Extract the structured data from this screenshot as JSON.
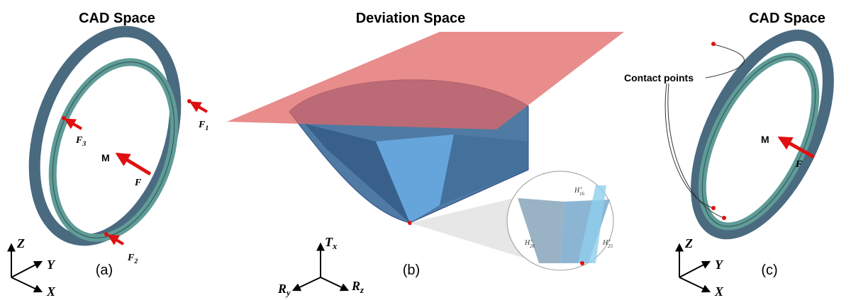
{
  "panels": [
    {
      "title": "CAD Space",
      "caption": "(a)",
      "moment": "M",
      "forces": [
        {
          "symbol": "F",
          "sub": "1"
        },
        {
          "symbol": "F",
          "sub": "3"
        },
        {
          "symbol": "F"
        },
        {
          "symbol": "F",
          "sub": "2"
        }
      ],
      "axes": [
        {
          "symbol": "Z"
        },
        {
          "symbol": "Y"
        },
        {
          "symbol": "X"
        }
      ]
    },
    {
      "title": "Deviation Space",
      "caption": "(b)",
      "axes": [
        {
          "symbol": "T",
          "sub": "x"
        },
        {
          "symbol": "R",
          "sub": "y"
        },
        {
          "symbol": "R",
          "sub": "z"
        }
      ],
      "inset": [
        {
          "symbol": "H",
          "sup": "+",
          "sub": "16"
        },
        {
          "symbol": "H",
          "sup": "+",
          "sub": "26"
        },
        {
          "symbol": "H",
          "sup": "+",
          "sub": "25"
        }
      ]
    },
    {
      "title": "CAD Space",
      "caption": "(c)",
      "annotation": "Contact points",
      "moment": "M",
      "forces": [
        {
          "symbol": "F"
        }
      ],
      "axes": [
        {
          "symbol": "Z"
        },
        {
          "symbol": "Y"
        },
        {
          "symbol": "X"
        }
      ]
    }
  ]
}
